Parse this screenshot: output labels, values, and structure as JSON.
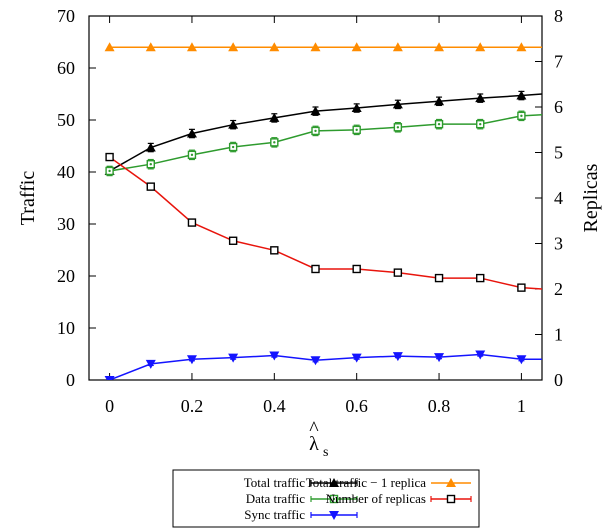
{
  "chart_data": {
    "type": "line",
    "xlabel": "λ̂s",
    "xlabel_main": "λ",
    "xlabel_sub": "s",
    "ylabel": "Traffic",
    "y2label": "Replicas",
    "xlim": [
      -0.05,
      1.05
    ],
    "ylim": [
      0,
      70
    ],
    "y2lim": [
      0,
      8
    ],
    "xticks": [
      "0",
      "0.2",
      "0.4",
      "0.6",
      "0.8",
      "1"
    ],
    "xtick_values": [
      0,
      0.2,
      0.4,
      0.6,
      0.8,
      1
    ],
    "yticks": [
      "0",
      "10",
      "20",
      "30",
      "40",
      "50",
      "60",
      "70"
    ],
    "ytick_values": [
      0,
      10,
      20,
      30,
      40,
      50,
      60,
      70
    ],
    "y2ticks": [
      "0",
      "1",
      "2",
      "3",
      "4",
      "5",
      "6",
      "7",
      "8"
    ],
    "y2tick_values": [
      0,
      1,
      2,
      3,
      4,
      5,
      6,
      7,
      8
    ],
    "grid": false,
    "legend_position": "bottom",
    "x": [
      0,
      0.1,
      0.2,
      0.3,
      0.4,
      0.5,
      0.6,
      0.7,
      0.8,
      0.9,
      1.0,
      1.05
    ],
    "series": [
      {
        "name": "Total traffic",
        "axis": "left",
        "color": "#000000",
        "marker": "triangle-up",
        "values": [
          40.2,
          44.7,
          47.4,
          49.1,
          50.4,
          51.7,
          52.3,
          53.0,
          53.6,
          54.2,
          54.7,
          55.0
        ],
        "error": 0.8
      },
      {
        "name": "Total traffic − 1 replica",
        "axis": "left",
        "color": "#ff8c00",
        "marker": "triangle-up",
        "values": [
          64,
          64,
          64,
          64,
          64,
          64,
          64,
          64,
          64,
          64,
          64,
          64
        ],
        "error": 0
      },
      {
        "name": "Data traffic",
        "axis": "left",
        "color": "#2e9b2e",
        "marker": "square-dot",
        "values": [
          40.2,
          41.5,
          43.3,
          44.8,
          45.7,
          47.9,
          48.1,
          48.6,
          49.2,
          49.2,
          50.8,
          51.0
        ],
        "error": 0.9
      },
      {
        "name": "Number of replicas",
        "axis": "right",
        "color": "#e8140c",
        "marker": "square-open",
        "values": [
          4.9,
          4.25,
          3.46,
          3.06,
          2.85,
          2.44,
          2.44,
          2.36,
          2.24,
          2.24,
          2.03,
          2.0
        ],
        "error": 0.07
      },
      {
        "name": "Sync traffic",
        "axis": "left",
        "color": "#1414ff",
        "marker": "triangle-down",
        "values": [
          0,
          3.1,
          4.0,
          4.3,
          4.7,
          3.8,
          4.3,
          4.6,
          4.4,
          4.9,
          4.0,
          4.0
        ],
        "error": 0.3
      }
    ]
  }
}
